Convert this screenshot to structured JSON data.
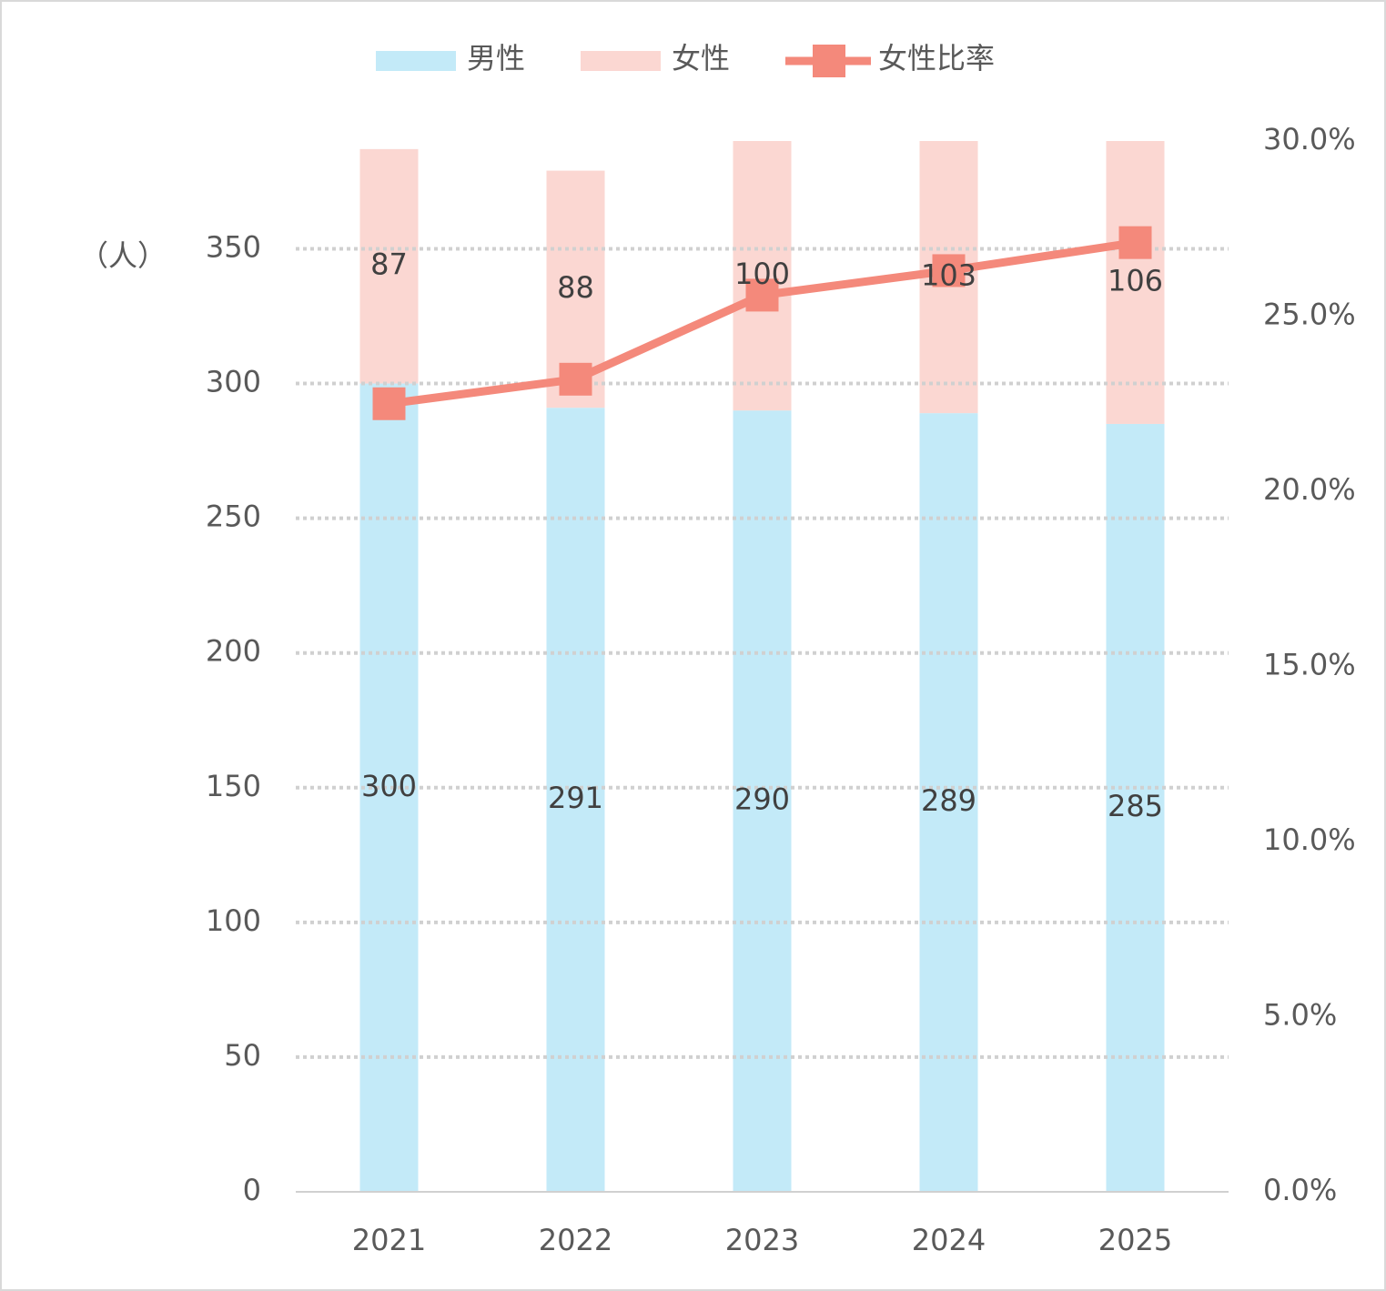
{
  "chart_data": {
    "type": "bar_line",
    "y_label": "（人）",
    "categories": [
      "2021",
      "2022",
      "2023",
      "2024",
      "2025"
    ],
    "series": [
      {
        "name": "男性",
        "type": "bar",
        "color": "#c3eaf8",
        "values": [
          300,
          291,
          290,
          289,
          285
        ]
      },
      {
        "name": "女性",
        "type": "bar",
        "color": "#fbd7d2",
        "values": [
          87,
          88,
          100,
          103,
          106
        ]
      },
      {
        "name": "女性比率",
        "type": "line",
        "axis": "y2",
        "color": "#f4897b",
        "values": [
          22.5,
          23.2,
          25.6,
          26.3,
          27.1
        ]
      }
    ],
    "stacked": true,
    "ylim": [
      0,
      390
    ],
    "yticks": [
      0,
      50,
      100,
      150,
      200,
      250,
      300,
      350
    ],
    "y2lim": [
      0,
      30
    ],
    "y2ticks": [
      {
        "value": 0,
        "label": "0.0%"
      },
      {
        "value": 5,
        "label": "5.0%"
      },
      {
        "value": 10,
        "label": "10.0%"
      },
      {
        "value": 15,
        "label": "15.0%"
      },
      {
        "value": 20,
        "label": "20.0%"
      },
      {
        "value": 25,
        "label": "25.0%"
      },
      {
        "value": 30,
        "label": "30.0%"
      }
    ],
    "grid": true,
    "legend": "top"
  }
}
